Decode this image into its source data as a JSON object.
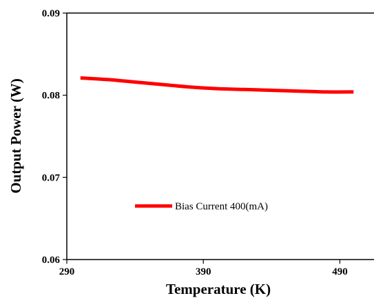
{
  "chart_data": {
    "type": "line",
    "xlabel": "Temperature (K)",
    "ylabel": "Output Power (W)",
    "xlim": [
      290,
      515
    ],
    "ylim": [
      0.06,
      0.09
    ],
    "x_ticks": [
      290,
      390,
      490
    ],
    "y_ticks": [
      0.06,
      0.07,
      0.08,
      0.09
    ],
    "x_tick_labels": [
      "290",
      "390",
      "490"
    ],
    "y_tick_labels": [
      "0.06",
      "0.07",
      "0.08",
      "0.09"
    ],
    "grid": false,
    "legend_position": "center-left",
    "series": [
      {
        "name": "Bias Current 400(mA)",
        "color": "#ff0000",
        "x": [
          300,
          320,
          340,
          360,
          380,
          400,
          420,
          440,
          460,
          480,
          500
        ],
        "y": [
          0.0821,
          0.0819,
          0.0816,
          0.0813,
          0.081,
          0.0808,
          0.0807,
          0.0806,
          0.0805,
          0.0804,
          0.0804
        ]
      }
    ]
  }
}
